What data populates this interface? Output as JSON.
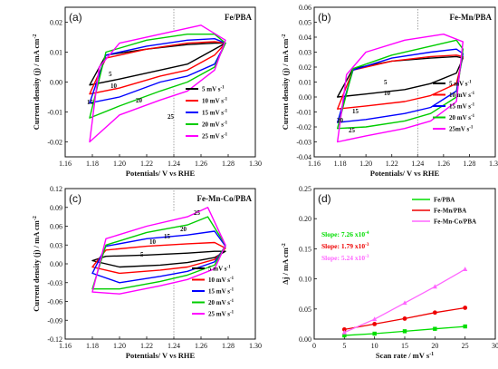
{
  "chart_data": [
    {
      "id": "a",
      "type": "line",
      "panel_label": "(a)",
      "title": "Fe/PBA",
      "xlabel": "Potentials/ V vs RHE",
      "ylabel": "Current density (j) / mA cm-2",
      "xlim": [
        1.16,
        1.3
      ],
      "ylim": [
        -0.025,
        0.025
      ],
      "xticks": [
        "1.16",
        "1.18",
        "1.20",
        "1.22",
        "1.24",
        "1.26",
        "1.28",
        "1.30"
      ],
      "yticks": [
        "-0.02",
        "-0.01",
        "0.00",
        "0.01",
        "0.02"
      ],
      "marker_x": 1.24,
      "x_range": [
        1.178,
        1.278
      ],
      "legend": [
        "5 mV s-1",
        "10 mV s-1",
        "15 mV s-1",
        "20 mV s-1",
        "25 mV s-1"
      ],
      "curve_labels": [
        "5",
        "10",
        "15",
        "20",
        "25"
      ],
      "series": [
        {
          "name": "5 mV s-1",
          "color": "#000000",
          "upper": [
            [
              1.178,
              -0.001
            ],
            [
              1.19,
              0.009
            ],
            [
              1.22,
              0.011
            ],
            [
              1.25,
              0.0125
            ],
            [
              1.27,
              0.013
            ],
            [
              1.278,
              0.013
            ]
          ],
          "lower": [
            [
              1.178,
              -0.001
            ],
            [
              1.2,
              0.001
            ],
            [
              1.23,
              0.004
            ],
            [
              1.25,
              0.006
            ],
            [
              1.27,
              0.011
            ],
            [
              1.278,
              0.013
            ]
          ]
        },
        {
          "name": "10 mV s-1",
          "color": "#ff0000",
          "upper": [
            [
              1.178,
              -0.004
            ],
            [
              1.19,
              0.008
            ],
            [
              1.22,
              0.011
            ],
            [
              1.25,
              0.013
            ],
            [
              1.27,
              0.0135
            ],
            [
              1.278,
              0.013
            ]
          ],
          "lower": [
            [
              1.178,
              -0.004
            ],
            [
              1.2,
              -0.002
            ],
            [
              1.23,
              0.002
            ],
            [
              1.25,
              0.004
            ],
            [
              1.27,
              0.009
            ],
            [
              1.278,
              0.013
            ]
          ]
        },
        {
          "name": "15 mV s-1",
          "color": "#0000ff",
          "upper": [
            [
              1.178,
              -0.007
            ],
            [
              1.19,
              0.009
            ],
            [
              1.22,
              0.012
            ],
            [
              1.25,
              0.014
            ],
            [
              1.27,
              0.0145
            ],
            [
              1.278,
              0.013
            ]
          ],
          "lower": [
            [
              1.178,
              -0.007
            ],
            [
              1.2,
              -0.005
            ],
            [
              1.23,
              0.0
            ],
            [
              1.25,
              0.002
            ],
            [
              1.27,
              0.006
            ],
            [
              1.278,
              0.013
            ]
          ]
        },
        {
          "name": "20 mV s-1",
          "color": "#00cc00",
          "upper": [
            [
              1.178,
              -0.012
            ],
            [
              1.19,
              0.01
            ],
            [
              1.22,
              0.014
            ],
            [
              1.25,
              0.016
            ],
            [
              1.27,
              0.016
            ],
            [
              1.278,
              0.013
            ]
          ],
          "lower": [
            [
              1.178,
              -0.012
            ],
            [
              1.2,
              -0.008
            ],
            [
              1.23,
              -0.003
            ],
            [
              1.25,
              0.0
            ],
            [
              1.27,
              0.005
            ],
            [
              1.278,
              0.013
            ]
          ]
        },
        {
          "name": "25 mV s-1",
          "color": "#ff00ff",
          "upper": [
            [
              1.178,
              -0.02
            ],
            [
              1.185,
              0.005
            ],
            [
              1.2,
              0.013
            ],
            [
              1.23,
              0.016
            ],
            [
              1.26,
              0.019
            ],
            [
              1.278,
              0.014
            ]
          ],
          "lower": [
            [
              1.178,
              -0.02
            ],
            [
              1.2,
              -0.011
            ],
            [
              1.23,
              -0.006
            ],
            [
              1.25,
              -0.003
            ],
            [
              1.27,
              0.004
            ],
            [
              1.278,
              0.014
            ]
          ]
        }
      ]
    },
    {
      "id": "b",
      "type": "line",
      "panel_label": "(b)",
      "title": "Fe-Mn/PBA",
      "xlabel": "Potentials/ V vs RHE",
      "ylabel": "Current density (j) / mA cm-2",
      "xlim": [
        1.16,
        1.3
      ],
      "ylim": [
        -0.04,
        0.06
      ],
      "xticks": [
        "1.16",
        "1.18",
        "1.20",
        "1.22",
        "1.24",
        "1.26",
        "1.28",
        "1.30"
      ],
      "yticks": [
        "-0.04",
        "-0.03",
        "-0.02",
        "-0.01",
        "0.00",
        "0.01",
        "0.02",
        "0.03",
        "0.04",
        "0.05",
        "0.06"
      ],
      "marker_x": 1.24,
      "x_range": [
        1.178,
        1.275
      ],
      "legend": [
        "5 mV s-1",
        "10 mV s-1",
        "15 mV s-1",
        "20 mV s-1",
        "25mV s-1"
      ],
      "curve_labels": [
        "5",
        "10",
        "15",
        "20",
        "25"
      ],
      "series": [
        {
          "name": "5 mV s-1",
          "color": "#000000",
          "upper": [
            [
              1.178,
              0.0
            ],
            [
              1.19,
              0.019
            ],
            [
              1.22,
              0.024
            ],
            [
              1.25,
              0.026
            ],
            [
              1.27,
              0.027
            ],
            [
              1.275,
              0.026
            ]
          ],
          "lower": [
            [
              1.178,
              0.0
            ],
            [
              1.2,
              0.002
            ],
            [
              1.23,
              0.005
            ],
            [
              1.25,
              0.009
            ],
            [
              1.27,
              0.016
            ],
            [
              1.275,
              0.026
            ]
          ]
        },
        {
          "name": "10 mV s-1",
          "color": "#ff0000",
          "upper": [
            [
              1.178,
              -0.008
            ],
            [
              1.19,
              0.018
            ],
            [
              1.22,
              0.024
            ],
            [
              1.25,
              0.027
            ],
            [
              1.27,
              0.028
            ],
            [
              1.275,
              0.027
            ]
          ],
          "lower": [
            [
              1.178,
              -0.008
            ],
            [
              1.2,
              -0.006
            ],
            [
              1.23,
              -0.003
            ],
            [
              1.25,
              0.001
            ],
            [
              1.27,
              0.009
            ],
            [
              1.275,
              0.027
            ]
          ]
        },
        {
          "name": "15 mV s-1",
          "color": "#0000ff",
          "upper": [
            [
              1.178,
              -0.017
            ],
            [
              1.19,
              0.018
            ],
            [
              1.22,
              0.026
            ],
            [
              1.25,
              0.03
            ],
            [
              1.27,
              0.032
            ],
            [
              1.275,
              0.029
            ]
          ],
          "lower": [
            [
              1.178,
              -0.017
            ],
            [
              1.2,
              -0.015
            ],
            [
              1.23,
              -0.011
            ],
            [
              1.25,
              -0.007
            ],
            [
              1.27,
              0.004
            ],
            [
              1.275,
              0.029
            ]
          ]
        },
        {
          "name": "20 mV s-1",
          "color": "#00cc00",
          "upper": [
            [
              1.178,
              -0.021
            ],
            [
              1.19,
              0.019
            ],
            [
              1.22,
              0.028
            ],
            [
              1.25,
              0.034
            ],
            [
              1.27,
              0.038
            ],
            [
              1.275,
              0.032
            ]
          ],
          "lower": [
            [
              1.178,
              -0.021
            ],
            [
              1.2,
              -0.02
            ],
            [
              1.23,
              -0.016
            ],
            [
              1.25,
              -0.011
            ],
            [
              1.27,
              0.0
            ],
            [
              1.275,
              0.032
            ]
          ]
        },
        {
          "name": "25mV s-1",
          "color": "#ff00ff",
          "upper": [
            [
              1.178,
              -0.03
            ],
            [
              1.185,
              0.015
            ],
            [
              1.2,
              0.03
            ],
            [
              1.23,
              0.038
            ],
            [
              1.26,
              0.042
            ],
            [
              1.275,
              0.037
            ]
          ],
          "lower": [
            [
              1.178,
              -0.03
            ],
            [
              1.2,
              -0.026
            ],
            [
              1.23,
              -0.021
            ],
            [
              1.25,
              -0.016
            ],
            [
              1.27,
              -0.003
            ],
            [
              1.275,
              0.037
            ]
          ]
        }
      ]
    },
    {
      "id": "c",
      "type": "line",
      "panel_label": "(c)",
      "title": "Fe-Mn-Co/PBA",
      "xlabel": "Potentials/ V vs RHE",
      "ylabel": "Current density (j) / mA cm-2",
      "xlim": [
        1.16,
        1.3
      ],
      "ylim": [
        -0.12,
        0.12
      ],
      "xticks": [
        "1.16",
        "1.18",
        "1.20",
        "1.22",
        "1.24",
        "1.26",
        "1.28",
        "1.30"
      ],
      "yticks": [
        "-0.12",
        "-0.09",
        "-0.06",
        "-0.03",
        "0.00",
        "0.03",
        "0.06",
        "0.09",
        "0.12"
      ],
      "marker_x": 1.24,
      "x_range": [
        1.18,
        1.278
      ],
      "legend": [
        "5 mV s-1",
        "10 mV s-1",
        "15 mV s-1",
        "20 mV s-1",
        "25 mV s-1"
      ],
      "curve_labels": [
        "5",
        "10",
        "15",
        "20",
        "25"
      ],
      "series": [
        {
          "name": "5 mV s-1",
          "color": "#000000",
          "upper": [
            [
              1.18,
              0.005
            ],
            [
              1.19,
              0.012
            ],
            [
              1.22,
              0.014
            ],
            [
              1.25,
              0.017
            ],
            [
              1.27,
              0.02
            ],
            [
              1.278,
              0.02
            ]
          ],
          "lower": [
            [
              1.18,
              0.005
            ],
            [
              1.2,
              -0.005
            ],
            [
              1.23,
              -0.002
            ],
            [
              1.25,
              0.002
            ],
            [
              1.27,
              0.01
            ],
            [
              1.278,
              0.02
            ]
          ]
        },
        {
          "name": "10 mV s-1",
          "color": "#ff0000",
          "upper": [
            [
              1.18,
              -0.005
            ],
            [
              1.19,
              0.022
            ],
            [
              1.22,
              0.028
            ],
            [
              1.25,
              0.032
            ],
            [
              1.27,
              0.034
            ],
            [
              1.278,
              0.025
            ]
          ],
          "lower": [
            [
              1.18,
              -0.005
            ],
            [
              1.2,
              -0.015
            ],
            [
              1.23,
              -0.01
            ],
            [
              1.25,
              -0.005
            ],
            [
              1.27,
              0.007
            ],
            [
              1.278,
              0.025
            ]
          ]
        },
        {
          "name": "15 mV s-1",
          "color": "#0000ff",
          "upper": [
            [
              1.18,
              -0.015
            ],
            [
              1.19,
              0.028
            ],
            [
              1.22,
              0.04
            ],
            [
              1.25,
              0.046
            ],
            [
              1.27,
              0.052
            ],
            [
              1.278,
              0.028
            ]
          ],
          "lower": [
            [
              1.18,
              -0.015
            ],
            [
              1.2,
              -0.03
            ],
            [
              1.23,
              -0.02
            ],
            [
              1.25,
              -0.012
            ],
            [
              1.27,
              0.003
            ],
            [
              1.278,
              0.028
            ]
          ]
        },
        {
          "name": "20 mV s-1",
          "color": "#00cc00",
          "upper": [
            [
              1.18,
              -0.04
            ],
            [
              1.19,
              0.03
            ],
            [
              1.22,
              0.05
            ],
            [
              1.25,
              0.062
            ],
            [
              1.265,
              0.075
            ],
            [
              1.278,
              0.03
            ]
          ],
          "lower": [
            [
              1.18,
              -0.04
            ],
            [
              1.2,
              -0.04
            ],
            [
              1.23,
              -0.028
            ],
            [
              1.25,
              -0.018
            ],
            [
              1.27,
              -0.002
            ],
            [
              1.278,
              0.03
            ]
          ]
        },
        {
          "name": "25 mV s-1",
          "color": "#ff00ff",
          "upper": [
            [
              1.18,
              -0.045
            ],
            [
              1.19,
              0.04
            ],
            [
              1.22,
              0.06
            ],
            [
              1.25,
              0.075
            ],
            [
              1.265,
              0.09
            ],
            [
              1.278,
              0.03
            ]
          ],
          "lower": [
            [
              1.18,
              -0.045
            ],
            [
              1.2,
              -0.048
            ],
            [
              1.23,
              -0.035
            ],
            [
              1.25,
              -0.025
            ],
            [
              1.27,
              -0.008
            ],
            [
              1.278,
              0.03
            ]
          ]
        }
      ]
    },
    {
      "id": "d",
      "type": "scatter",
      "panel_label": "(d)",
      "title": "",
      "xlabel": "Scan rate / mV s-1",
      "ylabel": "Δj / mA cm-2",
      "xlim": [
        0,
        30
      ],
      "ylim": [
        0,
        0.25
      ],
      "xticks": [
        "0",
        "5",
        "10",
        "15",
        "20",
        "25",
        "30"
      ],
      "yticks": [
        "0.00",
        "0.05",
        "0.10",
        "0.15",
        "0.20",
        "0.25"
      ],
      "x": [
        5,
        10,
        15,
        20,
        25
      ],
      "series": [
        {
          "name": "Fe/PBA",
          "color": "#00dd00",
          "values": [
            0.006,
            0.009,
            0.013,
            0.017,
            0.021
          ],
          "slope_text": "Slope: 7.26 x10-4"
        },
        {
          "name": "Fe-Mn/PBA",
          "color": "#ee0000",
          "values": [
            0.016,
            0.025,
            0.034,
            0.044,
            0.052
          ],
          "slope_text": "Slope: 1.79 x10-3"
        },
        {
          "name": "Fe-Mn-Co/PBA",
          "color": "#ff66ff",
          "values": [
            0.011,
            0.033,
            0.06,
            0.087,
            0.116
          ],
          "slope_text": "Slope: 5.24 x10-3"
        }
      ]
    }
  ]
}
